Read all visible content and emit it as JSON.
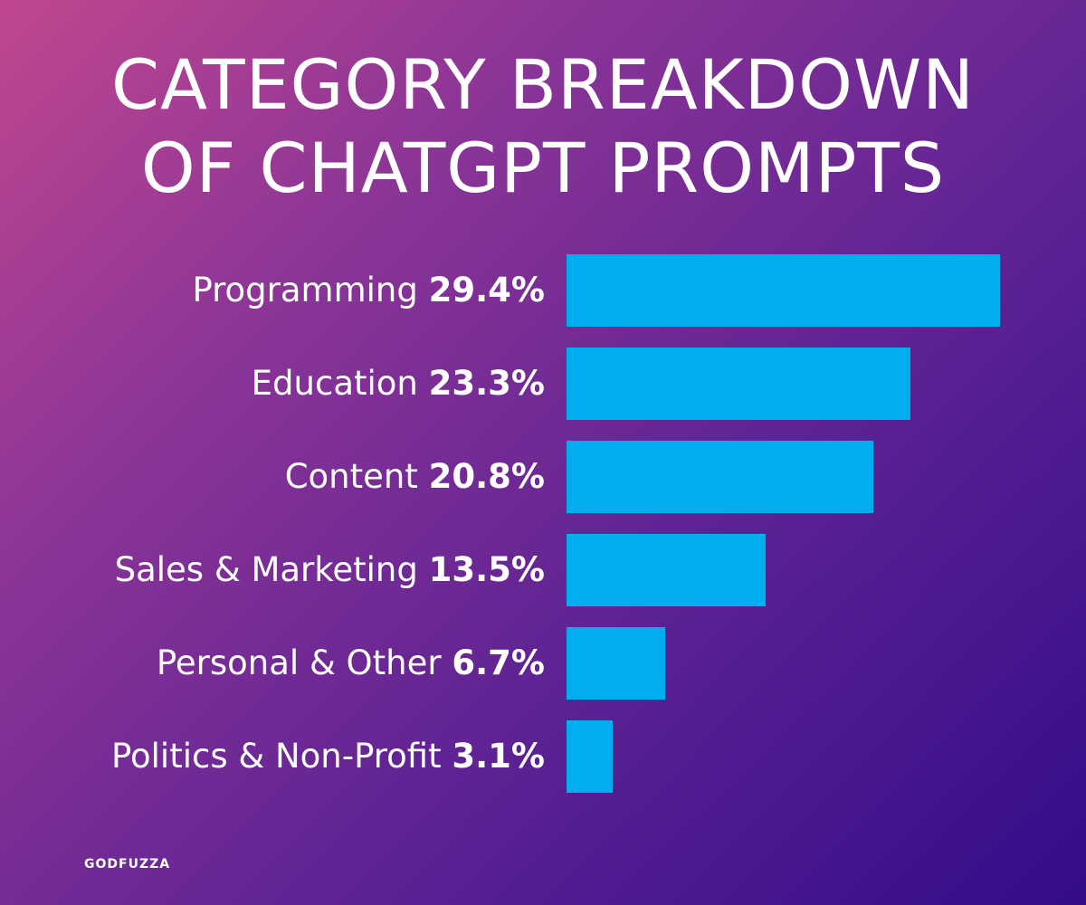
{
  "title_lines": [
    "CATEGORY BREAKDOWN",
    "OF CHATGPT PROMPTS"
  ],
  "brand": "GODFUZZA",
  "colors": {
    "bar": "#00adee",
    "background_start": "#c0478f",
    "background_end": "#330c8a",
    "text": "#ffffff"
  },
  "chart_data": {
    "type": "bar",
    "orientation": "horizontal",
    "title": "CATEGORY BREAKDOWN OF CHATGPT PROMPTS",
    "categories": [
      "Programming",
      "Education",
      "Content",
      "Sales & Marketing",
      "Personal & Other",
      "Politics & Non-Profit"
    ],
    "values": [
      29.4,
      23.3,
      20.8,
      13.5,
      6.7,
      3.1
    ],
    "value_labels": [
      "29.4%",
      "23.3%",
      "20.8%",
      "13.5%",
      "6.7%",
      "3.1%"
    ],
    "unit": "%",
    "grid": false,
    "axes_visible": false
  }
}
